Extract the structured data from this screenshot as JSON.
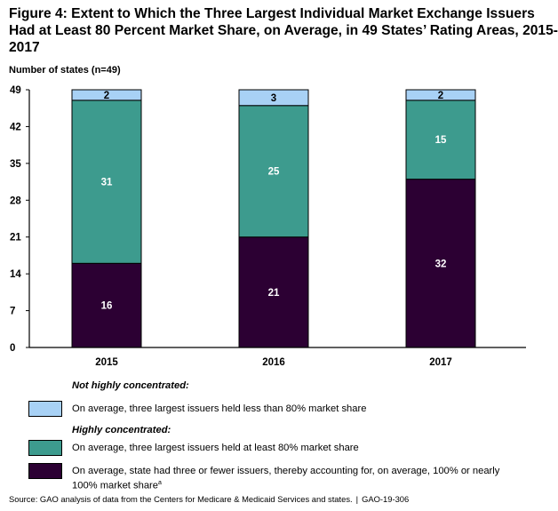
{
  "title_lines": [
    "Figure 4: Extent to Which the Three Largest Individual Market Exchange Issuers",
    "Had at Least 80 Percent Market Share, on Average, in 49 States’ Rating Areas, 2015-",
    "2017"
  ],
  "legend": {
    "not_concentrated_heading": "Not highly concentrated:",
    "highly_concentrated_heading": "Highly concentrated:",
    "items": [
      {
        "label": "On average, three largest issuers held less than 80% market share",
        "color": "#a8d1f5"
      },
      {
        "label": "On average, three largest issuers held at least 80% market share",
        "color": "#3d9b8e"
      },
      {
        "label": "On average, state had three or fewer issuers, thereby accounting for, on average, 100% or nearly 100% market share",
        "superscript": "a",
        "color": "#2c0033"
      }
    ]
  },
  "source": {
    "text": "Source: GAO analysis of data from the Centers for Medicare & Medicaid Services and states.",
    "separator": "|",
    "report_id": "GAO-19-306"
  },
  "chart_data": {
    "type": "bar",
    "stacked": true,
    "ylabel": "Number of states (n=49)",
    "ylim": [
      0,
      49
    ],
    "yticks": [
      0,
      7,
      14,
      21,
      28,
      35,
      42,
      49
    ],
    "categories": [
      "2015",
      "2016",
      "2017"
    ],
    "series": [
      {
        "values": [
          16,
          21,
          32
        ],
        "color": "#2c0033",
        "label_color": "#ffffff"
      },
      {
        "values": [
          31,
          25,
          15
        ],
        "color": "#3d9b8e",
        "label_color": "#ffffff"
      },
      {
        "values": [
          2,
          3,
          2
        ],
        "color": "#a8d1f5",
        "label_color": "#000000"
      }
    ]
  }
}
